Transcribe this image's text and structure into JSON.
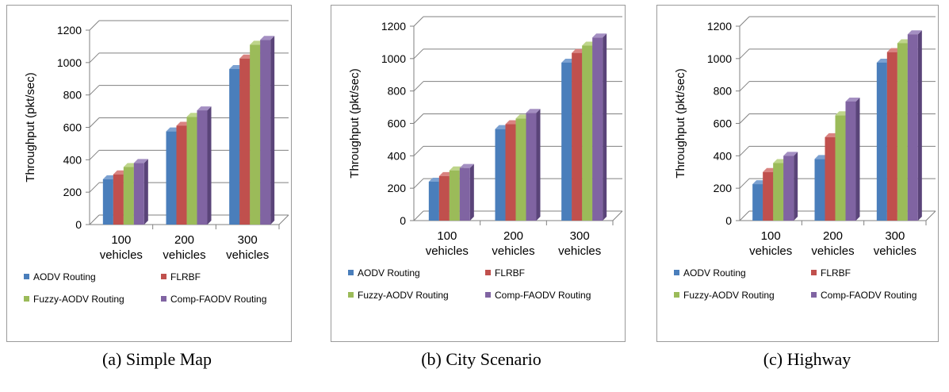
{
  "colors": {
    "frame": "#9a9a9a",
    "grid": "#808080",
    "series_front": [
      "#4a7ebb",
      "#c0504d",
      "#9bbb59",
      "#8064a2"
    ],
    "series_top": [
      "#7ba1d1",
      "#d98380",
      "#bed58a",
      "#a48fc2"
    ],
    "series_side": [
      "#2f568a",
      "#8f3331",
      "#71903c",
      "#5a4479"
    ]
  },
  "chart_data": [
    {
      "type": "bar",
      "caption": "(a) Simple Map",
      "ylabel": "Throughput (pkt/sec)",
      "ylim": [
        0,
        1200
      ],
      "yticks": [
        0,
        200,
        400,
        600,
        800,
        1000,
        1200
      ],
      "categories": [
        [
          "100",
          "vehicles"
        ],
        [
          "200",
          "vehicles"
        ],
        [
          "300",
          "vehicles"
        ]
      ],
      "grid": true,
      "legend_position": "bottom",
      "series": [
        {
          "name": "AODV Routing",
          "values": [
            280,
            575,
            960
          ]
        },
        {
          "name": "FLRBF",
          "values": [
            310,
            610,
            1025
          ]
        },
        {
          "name": "Fuzzy-AODV Routing",
          "values": [
            355,
            665,
            1110
          ]
        },
        {
          "name": "Comp-FAODV Routing",
          "values": [
            380,
            705,
            1140
          ]
        }
      ]
    },
    {
      "type": "bar",
      "caption": "(b) City Scenario",
      "ylabel": "Throughput (pkt/sec)",
      "ylim": [
        0,
        1200
      ],
      "yticks": [
        0,
        200,
        400,
        600,
        800,
        1000,
        1200
      ],
      "categories": [
        [
          "100",
          "vehicles"
        ],
        [
          "200",
          "vehicles"
        ],
        [
          "300",
          "vehicles"
        ]
      ],
      "grid": true,
      "legend_position": "bottom",
      "series": [
        {
          "name": "AODV Routing",
          "values": [
            240,
            565,
            975
          ]
        },
        {
          "name": "FLRBF",
          "values": [
            275,
            595,
            1035
          ]
        },
        {
          "name": "Fuzzy-AODV Routing",
          "values": [
            310,
            630,
            1080
          ]
        },
        {
          "name": "Comp-FAODV Routing",
          "values": [
            325,
            665,
            1130
          ]
        }
      ]
    },
    {
      "type": "bar",
      "caption": "(c) Highway",
      "ylabel": "Throughput (pkt/sec)",
      "ylim": [
        0,
        1200
      ],
      "yticks": [
        0,
        200,
        400,
        600,
        800,
        1000,
        1200
      ],
      "categories": [
        [
          "100",
          "vehicles"
        ],
        [
          "200",
          "vehicles"
        ],
        [
          "300",
          "vehicles"
        ]
      ],
      "grid": true,
      "legend_position": "bottom",
      "series": [
        {
          "name": "AODV Routing",
          "values": [
            225,
            380,
            975
          ]
        },
        {
          "name": "FLRBF",
          "values": [
            300,
            515,
            1040
          ]
        },
        {
          "name": "Fuzzy-AODV Routing",
          "values": [
            355,
            650,
            1095
          ]
        },
        {
          "name": "Comp-FAODV Routing",
          "values": [
            400,
            735,
            1150
          ]
        }
      ]
    }
  ]
}
